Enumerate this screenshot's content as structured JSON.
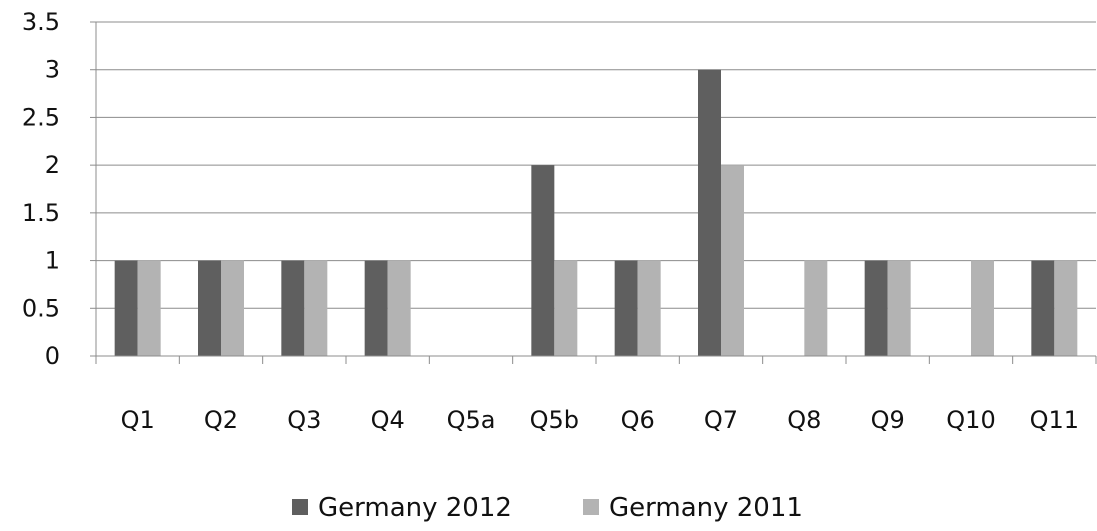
{
  "chart_data": {
    "type": "bar",
    "title": "",
    "xlabel": "",
    "ylabel": "",
    "categories": [
      "Q1",
      "Q2",
      "Q3",
      "Q4",
      "Q5a",
      "Q5b",
      "Q6",
      "Q7",
      "Q8",
      "Q9",
      "Q10",
      "Q11"
    ],
    "series": [
      {
        "name": "Germany 2012",
        "color": "#5f5f5f",
        "values": [
          1,
          1,
          1,
          1,
          0,
          2,
          1,
          3,
          0,
          1,
          0,
          1
        ]
      },
      {
        "name": "Germany 2011",
        "color": "#b3b3b3",
        "values": [
          1,
          1,
          1,
          1,
          0,
          1,
          1,
          2,
          1,
          1,
          1,
          1
        ]
      }
    ],
    "ylim": [
      0,
      3.5
    ],
    "yticks": [
      "0",
      "0.5",
      "1",
      "1.5",
      "2",
      "2.5",
      "3",
      "3.5"
    ],
    "grid": true,
    "legend_position": "bottom"
  }
}
